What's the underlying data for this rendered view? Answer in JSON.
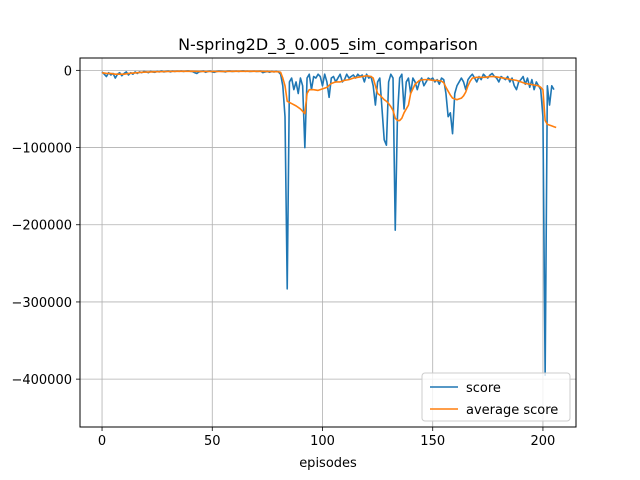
{
  "chart_data": {
    "type": "line",
    "title": "N-spring2D_3_0.005_sim_comparison",
    "xlabel": "episodes",
    "ylabel": "",
    "xlim": [
      -10,
      215
    ],
    "ylim": [
      -462000,
      16000
    ],
    "xticks": [
      0,
      50,
      100,
      150,
      200
    ],
    "yticks": [
      0,
      -100000,
      -200000,
      -300000,
      -400000
    ],
    "ytick_labels": [
      "0",
      "−100000",
      "−200000",
      "−300000",
      "−400000"
    ],
    "grid": true,
    "legend_position": "lower right",
    "series": [
      {
        "name": "score",
        "color": "#1f77b4",
        "points": [
          [
            0,
            -2000
          ],
          [
            1,
            -5000
          ],
          [
            2,
            -8000
          ],
          [
            3,
            -3000
          ],
          [
            4,
            -6000
          ],
          [
            5,
            -4000
          ],
          [
            6,
            -10000
          ],
          [
            7,
            -5000
          ],
          [
            8,
            -3000
          ],
          [
            9,
            -7000
          ],
          [
            10,
            -4000
          ],
          [
            11,
            -2000
          ],
          [
            12,
            -6000
          ],
          [
            13,
            -3000
          ],
          [
            14,
            -5000
          ],
          [
            15,
            -2000
          ],
          [
            16,
            -4000
          ],
          [
            17,
            -2000
          ],
          [
            18,
            -3000
          ],
          [
            19,
            -1500
          ],
          [
            20,
            -2000
          ],
          [
            21,
            -3000
          ],
          [
            22,
            -1500
          ],
          [
            23,
            -2000
          ],
          [
            24,
            -2500
          ],
          [
            25,
            -1500
          ],
          [
            26,
            -2000
          ],
          [
            27,
            -1000
          ],
          [
            28,
            -2000
          ],
          [
            29,
            -1500
          ],
          [
            30,
            -1000
          ],
          [
            31,
            -2000
          ],
          [
            32,
            -1000
          ],
          [
            33,
            -1500
          ],
          [
            34,
            -1000
          ],
          [
            35,
            -1200
          ],
          [
            36,
            -900
          ],
          [
            37,
            -1500
          ],
          [
            38,
            -1000
          ],
          [
            39,
            -800
          ],
          [
            40,
            -1200
          ],
          [
            41,
            -1500
          ],
          [
            42,
            -3000
          ],
          [
            43,
            -4000
          ],
          [
            44,
            -2000
          ],
          [
            45,
            -1500
          ],
          [
            46,
            -1000
          ],
          [
            47,
            -2500
          ],
          [
            48,
            -1500
          ],
          [
            49,
            -1000
          ],
          [
            50,
            -2000
          ],
          [
            51,
            -2500
          ],
          [
            52,
            -1500
          ],
          [
            53,
            -1000
          ],
          [
            54,
            -1200
          ],
          [
            55,
            -1500
          ],
          [
            56,
            -2000
          ],
          [
            57,
            -1000
          ],
          [
            58,
            -900
          ],
          [
            59,
            -1500
          ],
          [
            60,
            -1200
          ],
          [
            61,
            -1000
          ],
          [
            62,
            -1500
          ],
          [
            63,
            -1000
          ],
          [
            64,
            -800
          ],
          [
            65,
            -1200
          ],
          [
            66,
            -1000
          ],
          [
            67,
            -1500
          ],
          [
            68,
            -1200
          ],
          [
            69,
            -1000
          ],
          [
            70,
            -1500
          ],
          [
            71,
            -1200
          ],
          [
            72,
            -1000
          ],
          [
            73,
            -3000
          ],
          [
            74,
            -2000
          ],
          [
            75,
            -1500
          ],
          [
            76,
            -2500
          ],
          [
            77,
            -1500
          ],
          [
            78,
            -2000
          ],
          [
            79,
            -1500
          ],
          [
            80,
            -2000
          ],
          [
            81,
            -5000
          ],
          [
            82,
            -20000
          ],
          [
            83,
            -60000
          ],
          [
            84,
            -283000
          ],
          [
            85,
            -15000
          ],
          [
            86,
            -10000
          ],
          [
            87,
            -25000
          ],
          [
            88,
            -15000
          ],
          [
            89,
            -30000
          ],
          [
            90,
            -10000
          ],
          [
            91,
            -20000
          ],
          [
            92,
            -100000
          ],
          [
            93,
            -10000
          ],
          [
            94,
            -5000
          ],
          [
            95,
            -25000
          ],
          [
            96,
            -8000
          ],
          [
            97,
            -10000
          ],
          [
            98,
            -5000
          ],
          [
            99,
            -8000
          ],
          [
            100,
            -20000
          ],
          [
            101,
            -5000
          ],
          [
            102,
            -15000
          ],
          [
            103,
            -35000
          ],
          [
            104,
            -10000
          ],
          [
            105,
            -8000
          ],
          [
            106,
            -15000
          ],
          [
            107,
            -10000
          ],
          [
            108,
            -5000
          ],
          [
            109,
            -15000
          ],
          [
            110,
            -12000
          ],
          [
            111,
            -5000
          ],
          [
            112,
            -10000
          ],
          [
            113,
            -8000
          ],
          [
            114,
            -6000
          ],
          [
            115,
            -10000
          ],
          [
            116,
            -5000
          ],
          [
            117,
            -8000
          ],
          [
            118,
            -6000
          ],
          [
            119,
            -15000
          ],
          [
            120,
            -5000
          ],
          [
            121,
            -10000
          ],
          [
            122,
            -8000
          ],
          [
            123,
            -20000
          ],
          [
            124,
            -45000
          ],
          [
            125,
            -15000
          ],
          [
            126,
            -10000
          ],
          [
            127,
            -50000
          ],
          [
            128,
            -90000
          ],
          [
            129,
            -97000
          ],
          [
            130,
            -15000
          ],
          [
            131,
            -5000
          ],
          [
            132,
            -10000
          ],
          [
            133,
            -207000
          ],
          [
            134,
            -60000
          ],
          [
            135,
            -10000
          ],
          [
            136,
            -5000
          ],
          [
            137,
            -50000
          ],
          [
            138,
            -15000
          ],
          [
            139,
            -10000
          ],
          [
            140,
            -30000
          ],
          [
            141,
            -10000
          ],
          [
            142,
            -15000
          ],
          [
            143,
            -25000
          ],
          [
            144,
            -15000
          ],
          [
            145,
            -10000
          ],
          [
            146,
            -20000
          ],
          [
            147,
            -15000
          ],
          [
            148,
            -10000
          ],
          [
            149,
            -12000
          ],
          [
            150,
            -10000
          ],
          [
            151,
            -15000
          ],
          [
            152,
            -12000
          ],
          [
            153,
            -18000
          ],
          [
            154,
            -10000
          ],
          [
            155,
            -12000
          ],
          [
            156,
            -30000
          ],
          [
            157,
            -60000
          ],
          [
            158,
            -55000
          ],
          [
            159,
            -82000
          ],
          [
            160,
            -30000
          ],
          [
            161,
            -20000
          ],
          [
            162,
            -15000
          ],
          [
            163,
            -10000
          ],
          [
            164,
            -15000
          ],
          [
            165,
            -25000
          ],
          [
            166,
            -12000
          ],
          [
            167,
            -8000
          ],
          [
            168,
            -5000
          ],
          [
            169,
            -10000
          ],
          [
            170,
            -15000
          ],
          [
            171,
            -8000
          ],
          [
            172,
            -12000
          ],
          [
            173,
            -5000
          ],
          [
            174,
            -8000
          ],
          [
            175,
            -10000
          ],
          [
            176,
            -6000
          ],
          [
            177,
            -4000
          ],
          [
            178,
            -8000
          ],
          [
            179,
            -10000
          ],
          [
            180,
            -15000
          ],
          [
            181,
            -8000
          ],
          [
            182,
            -10000
          ],
          [
            183,
            -12000
          ],
          [
            184,
            -8000
          ],
          [
            185,
            -15000
          ],
          [
            186,
            -10000
          ],
          [
            187,
            -20000
          ],
          [
            188,
            -25000
          ],
          [
            189,
            -15000
          ],
          [
            190,
            -12000
          ],
          [
            191,
            -8000
          ],
          [
            192,
            -18000
          ],
          [
            193,
            -10000
          ],
          [
            194,
            -22000
          ],
          [
            195,
            -12000
          ],
          [
            196,
            -25000
          ],
          [
            197,
            -15000
          ],
          [
            198,
            -20000
          ],
          [
            199,
            -25000
          ],
          [
            200,
            -60000
          ],
          [
            201,
            -395000
          ],
          [
            202,
            -20000
          ],
          [
            203,
            -45000
          ],
          [
            204,
            -20000
          ],
          [
            205,
            -25000
          ]
        ]
      },
      {
        "name": "average score",
        "color": "#ff7f0e",
        "points": [
          [
            0,
            -3000
          ],
          [
            2,
            -4000
          ],
          [
            4,
            -4000
          ],
          [
            6,
            -5000
          ],
          [
            8,
            -5000
          ],
          [
            10,
            -5000
          ],
          [
            12,
            -4000
          ],
          [
            14,
            -3500
          ],
          [
            16,
            -3000
          ],
          [
            18,
            -2500
          ],
          [
            20,
            -2200
          ],
          [
            22,
            -2000
          ],
          [
            25,
            -1800
          ],
          [
            30,
            -1500
          ],
          [
            35,
            -1200
          ],
          [
            40,
            -1200
          ],
          [
            45,
            -1500
          ],
          [
            50,
            -1500
          ],
          [
            55,
            -1500
          ],
          [
            60,
            -1300
          ],
          [
            65,
            -1200
          ],
          [
            70,
            -1200
          ],
          [
            75,
            -1500
          ],
          [
            78,
            -1700
          ],
          [
            80,
            -1800
          ],
          [
            81,
            -2500
          ],
          [
            82,
            -10000
          ],
          [
            83,
            -20000
          ],
          [
            84,
            -40000
          ],
          [
            86,
            -43000
          ],
          [
            88,
            -46000
          ],
          [
            90,
            -50000
          ],
          [
            91,
            -53000
          ],
          [
            92,
            -56000
          ],
          [
            93,
            -30000
          ],
          [
            94,
            -25000
          ],
          [
            96,
            -25000
          ],
          [
            98,
            -26000
          ],
          [
            100,
            -24000
          ],
          [
            102,
            -22000
          ],
          [
            104,
            -17000
          ],
          [
            106,
            -15000
          ],
          [
            108,
            -15000
          ],
          [
            110,
            -13000
          ],
          [
            112,
            -12000
          ],
          [
            114,
            -10000
          ],
          [
            116,
            -9000
          ],
          [
            118,
            -8000
          ],
          [
            120,
            -7000
          ],
          [
            122,
            -8000
          ],
          [
            123,
            -10000
          ],
          [
            124,
            -20000
          ],
          [
            125,
            -30000
          ],
          [
            126,
            -32000
          ],
          [
            127,
            -35000
          ],
          [
            128,
            -38000
          ],
          [
            129,
            -40000
          ],
          [
            130,
            -43000
          ],
          [
            131,
            -47000
          ],
          [
            132,
            -52000
          ],
          [
            133,
            -62000
          ],
          [
            134,
            -65000
          ],
          [
            135,
            -65000
          ],
          [
            136,
            -62000
          ],
          [
            137,
            -55000
          ],
          [
            138,
            -50000
          ],
          [
            139,
            -45000
          ],
          [
            140,
            -30000
          ],
          [
            142,
            -18000
          ],
          [
            144,
            -13000
          ],
          [
            146,
            -12000
          ],
          [
            148,
            -12000
          ],
          [
            150,
            -13000
          ],
          [
            152,
            -13000
          ],
          [
            154,
            -14000
          ],
          [
            155,
            -16000
          ],
          [
            156,
            -22000
          ],
          [
            157,
            -27000
          ],
          [
            158,
            -32000
          ],
          [
            159,
            -36000
          ],
          [
            160,
            -37000
          ],
          [
            161,
            -38000
          ],
          [
            162,
            -37000
          ],
          [
            163,
            -36000
          ],
          [
            164,
            -33000
          ],
          [
            165,
            -28000
          ],
          [
            166,
            -20000
          ],
          [
            167,
            -14000
          ],
          [
            168,
            -10000
          ],
          [
            170,
            -9000
          ],
          [
            172,
            -9000
          ],
          [
            174,
            -9000
          ],
          [
            176,
            -8000
          ],
          [
            178,
            -8000
          ],
          [
            180,
            -9000
          ],
          [
            182,
            -10000
          ],
          [
            184,
            -11000
          ],
          [
            186,
            -12000
          ],
          [
            188,
            -13000
          ],
          [
            190,
            -15000
          ],
          [
            192,
            -17000
          ],
          [
            194,
            -18000
          ],
          [
            196,
            -19000
          ],
          [
            198,
            -20000
          ],
          [
            199,
            -22000
          ],
          [
            200,
            -25000
          ],
          [
            201,
            -65000
          ],
          [
            202,
            -70000
          ],
          [
            203,
            -71000
          ],
          [
            204,
            -72000
          ],
          [
            205,
            -73000
          ],
          [
            206,
            -74000
          ]
        ]
      }
    ]
  }
}
